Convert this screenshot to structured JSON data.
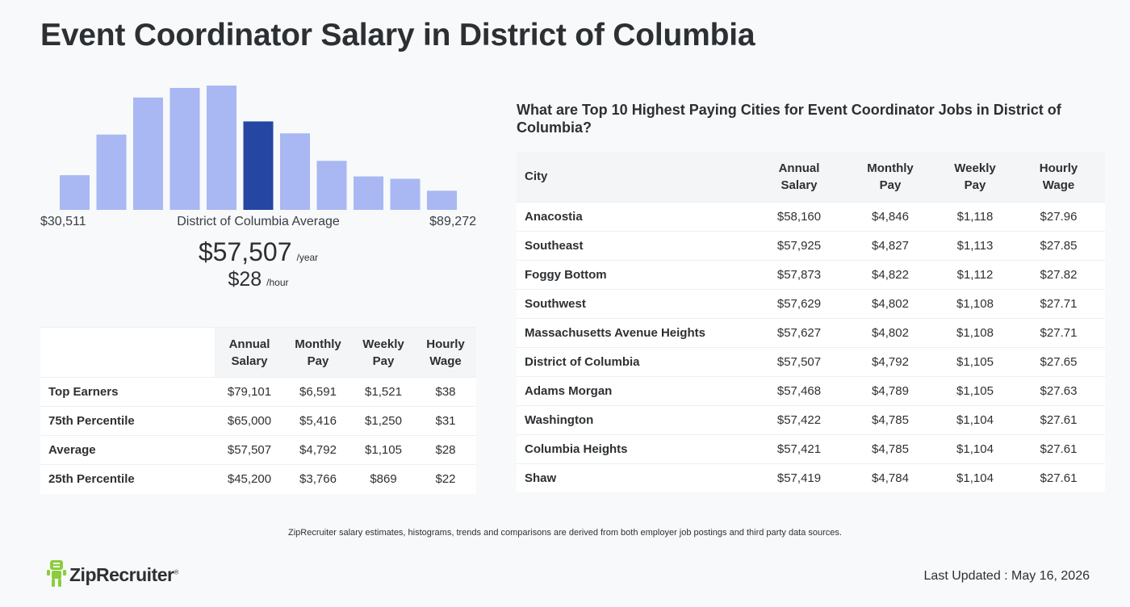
{
  "page": {
    "title": "Event Coordinator Salary in District of Columbia"
  },
  "histogram": {
    "min_label": "$30,511",
    "mid_label": "District of Columbia Average",
    "max_label": "$89,272",
    "bar_color": "#a9b8f2",
    "highlight_color": "#2546a3"
  },
  "chart_data": {
    "type": "bar",
    "values": [
      29,
      63,
      94,
      102,
      104,
      74,
      64,
      41,
      28,
      26,
      16
    ],
    "highlight_index": 5,
    "xlabel": "District of Columbia Average",
    "x_min_label": "$30,511",
    "x_max_label": "$89,272"
  },
  "average": {
    "annual": "$57,507",
    "annual_unit": "/year",
    "hourly": "$28",
    "hourly_unit": "/hour"
  },
  "percentile_table": {
    "headers": [
      {
        "line1": "Annual",
        "line2": "Salary"
      },
      {
        "line1": "Monthly",
        "line2": "Pay"
      },
      {
        "line1": "Weekly",
        "line2": "Pay"
      },
      {
        "line1": "Hourly",
        "line2": "Wage"
      }
    ],
    "rows": [
      {
        "label": "Top Earners",
        "annual": "$79,101",
        "monthly": "$6,591",
        "weekly": "$1,521",
        "hourly": "$38"
      },
      {
        "label": "75th Percentile",
        "annual": "$65,000",
        "monthly": "$5,416",
        "weekly": "$1,250",
        "hourly": "$31"
      },
      {
        "label": "Average",
        "annual": "$57,507",
        "monthly": "$4,792",
        "weekly": "$1,105",
        "hourly": "$28"
      },
      {
        "label": "25th Percentile",
        "annual": "$45,200",
        "monthly": "$3,766",
        "weekly": "$869",
        "hourly": "$22"
      }
    ]
  },
  "cities": {
    "heading": "What are Top 10 Highest Paying Cities for Event Coordinator Jobs in District of Columbia?",
    "headers": {
      "city": "City",
      "cols": [
        {
          "line1": "Annual",
          "line2": "Salary"
        },
        {
          "line1": "Monthly",
          "line2": "Pay"
        },
        {
          "line1": "Weekly",
          "line2": "Pay"
        },
        {
          "line1": "Hourly",
          "line2": "Wage"
        }
      ]
    },
    "rows": [
      {
        "city": "Anacostia",
        "annual": "$58,160",
        "monthly": "$4,846",
        "weekly": "$1,118",
        "hourly": "$27.96"
      },
      {
        "city": "Southeast",
        "annual": "$57,925",
        "monthly": "$4,827",
        "weekly": "$1,113",
        "hourly": "$27.85"
      },
      {
        "city": "Foggy Bottom",
        "annual": "$57,873",
        "monthly": "$4,822",
        "weekly": "$1,112",
        "hourly": "$27.82"
      },
      {
        "city": "Southwest",
        "annual": "$57,629",
        "monthly": "$4,802",
        "weekly": "$1,108",
        "hourly": "$27.71"
      },
      {
        "city": "Massachusetts Avenue Heights",
        "annual": "$57,627",
        "monthly": "$4,802",
        "weekly": "$1,108",
        "hourly": "$27.71"
      },
      {
        "city": "District of Columbia",
        "annual": "$57,507",
        "monthly": "$4,792",
        "weekly": "$1,105",
        "hourly": "$27.65"
      },
      {
        "city": "Adams Morgan",
        "annual": "$57,468",
        "monthly": "$4,789",
        "weekly": "$1,105",
        "hourly": "$27.63"
      },
      {
        "city": "Washington",
        "annual": "$57,422",
        "monthly": "$4,785",
        "weekly": "$1,104",
        "hourly": "$27.61"
      },
      {
        "city": "Columbia Heights",
        "annual": "$57,421",
        "monthly": "$4,785",
        "weekly": "$1,104",
        "hourly": "$27.61"
      },
      {
        "city": "Shaw",
        "annual": "$57,419",
        "monthly": "$4,784",
        "weekly": "$1,104",
        "hourly": "$27.61"
      }
    ]
  },
  "footer": {
    "disclaimer": "ZipRecruiter salary estimates, histograms, trends and comparisons are derived from both employer job postings and third party data sources.",
    "brand": "ZipRecruiter",
    "brand_mark": "®",
    "brand_color": "#8ccc3c",
    "last_updated": "Last Updated : May 16, 2026"
  }
}
